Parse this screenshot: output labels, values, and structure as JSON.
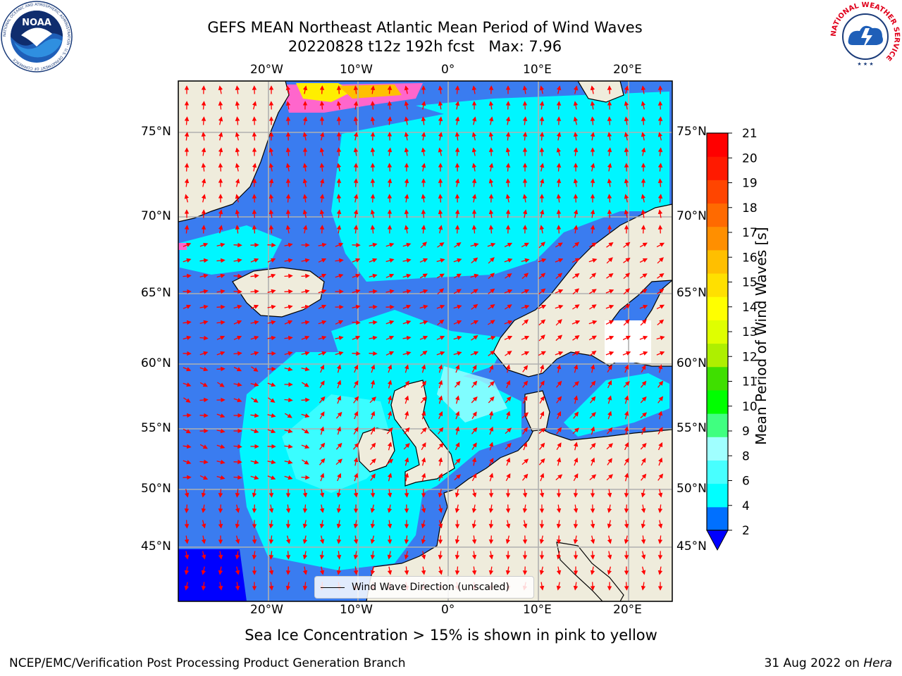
{
  "title": {
    "line1": "GEFS MEAN Northeast Atlantic Mean Period of Wind Waves",
    "line2": "20220828 t12z 192h fcst   Max: 7.96"
  },
  "logos": {
    "noaa": {
      "label": "NOAA",
      "ring_text": "NATIONAL OCEANIC AND ATMOSPHERIC ADMINISTRATION · U.S. DEPARTMENT OF COMMERCE"
    },
    "nws": {
      "ring_text": "NATIONAL WEATHER SERVICE"
    }
  },
  "map": {
    "region": "Northeast Atlantic",
    "lon_range": [
      -30,
      25
    ],
    "lat_range": [
      41,
      78
    ],
    "lon_ticks": [
      "20°W",
      "10°W",
      "0°",
      "10°E",
      "20°E"
    ],
    "lat_ticks": [
      "75°N",
      "70°N",
      "65°N",
      "60°N",
      "55°N",
      "50°N",
      "45°N"
    ],
    "land_color": "#efecdc",
    "legend": "Wind Wave Direction (unscaled)",
    "vector_color": "#ff0000"
  },
  "colorbar": {
    "label": "Mean Period of Wind Waves [s]",
    "ticks": [
      "2",
      "4",
      "6",
      "8",
      "9",
      "10",
      "11",
      "12",
      "13",
      "14",
      "15",
      "16",
      "17",
      "18",
      "19",
      "20",
      "21"
    ],
    "colors": [
      "#0070ff",
      "#00ffff",
      "#48ffff",
      "#a0ffff",
      "#40ff80",
      "#00ff00",
      "#3fdf00",
      "#aeef00",
      "#dfff00",
      "#ffff00",
      "#ffe000",
      "#ffbf00",
      "#ff8f00",
      "#ff6a00",
      "#ff4500",
      "#ff1a00",
      "#ff0000"
    ],
    "extend_color": "#0000ff"
  },
  "footer": {
    "ice_note": "Sea Ice Concentration > 15% is shown in pink to yellow",
    "credit": "NCEP/EMC/Verification Post Processing Product Generation Branch",
    "date": "31 Aug 2022 on",
    "host": "Hera"
  }
}
